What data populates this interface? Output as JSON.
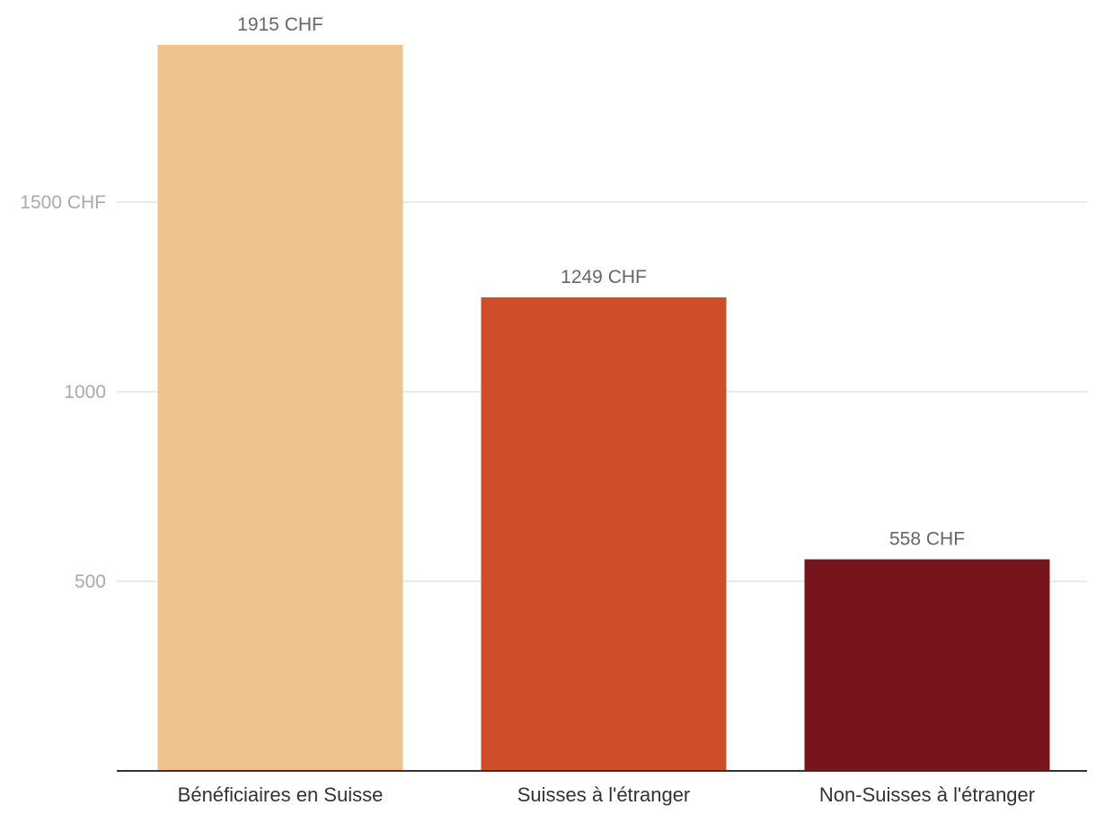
{
  "chart_data": {
    "type": "bar",
    "title": "",
    "xlabel": "",
    "ylabel": "",
    "categories": [
      "Bénéficiaires en Suisse",
      "Suisses à l'étranger",
      "Non-Suisses à l'étranger"
    ],
    "values": [
      1915,
      1249,
      558
    ],
    "data_labels": [
      "1915 CHF",
      "1249 CHF",
      "558 CHF"
    ],
    "colors": [
      "#eec38e",
      "#cd4e29",
      "#77141c"
    ],
    "ylim": [
      0,
      2000
    ],
    "yticks": [
      500,
      1000,
      1500
    ],
    "ytick_labels": [
      "500",
      "1000",
      "1500 CHF"
    ],
    "grid": true,
    "grid_color": "#e3e3e3",
    "baseline_color": "#333333"
  }
}
